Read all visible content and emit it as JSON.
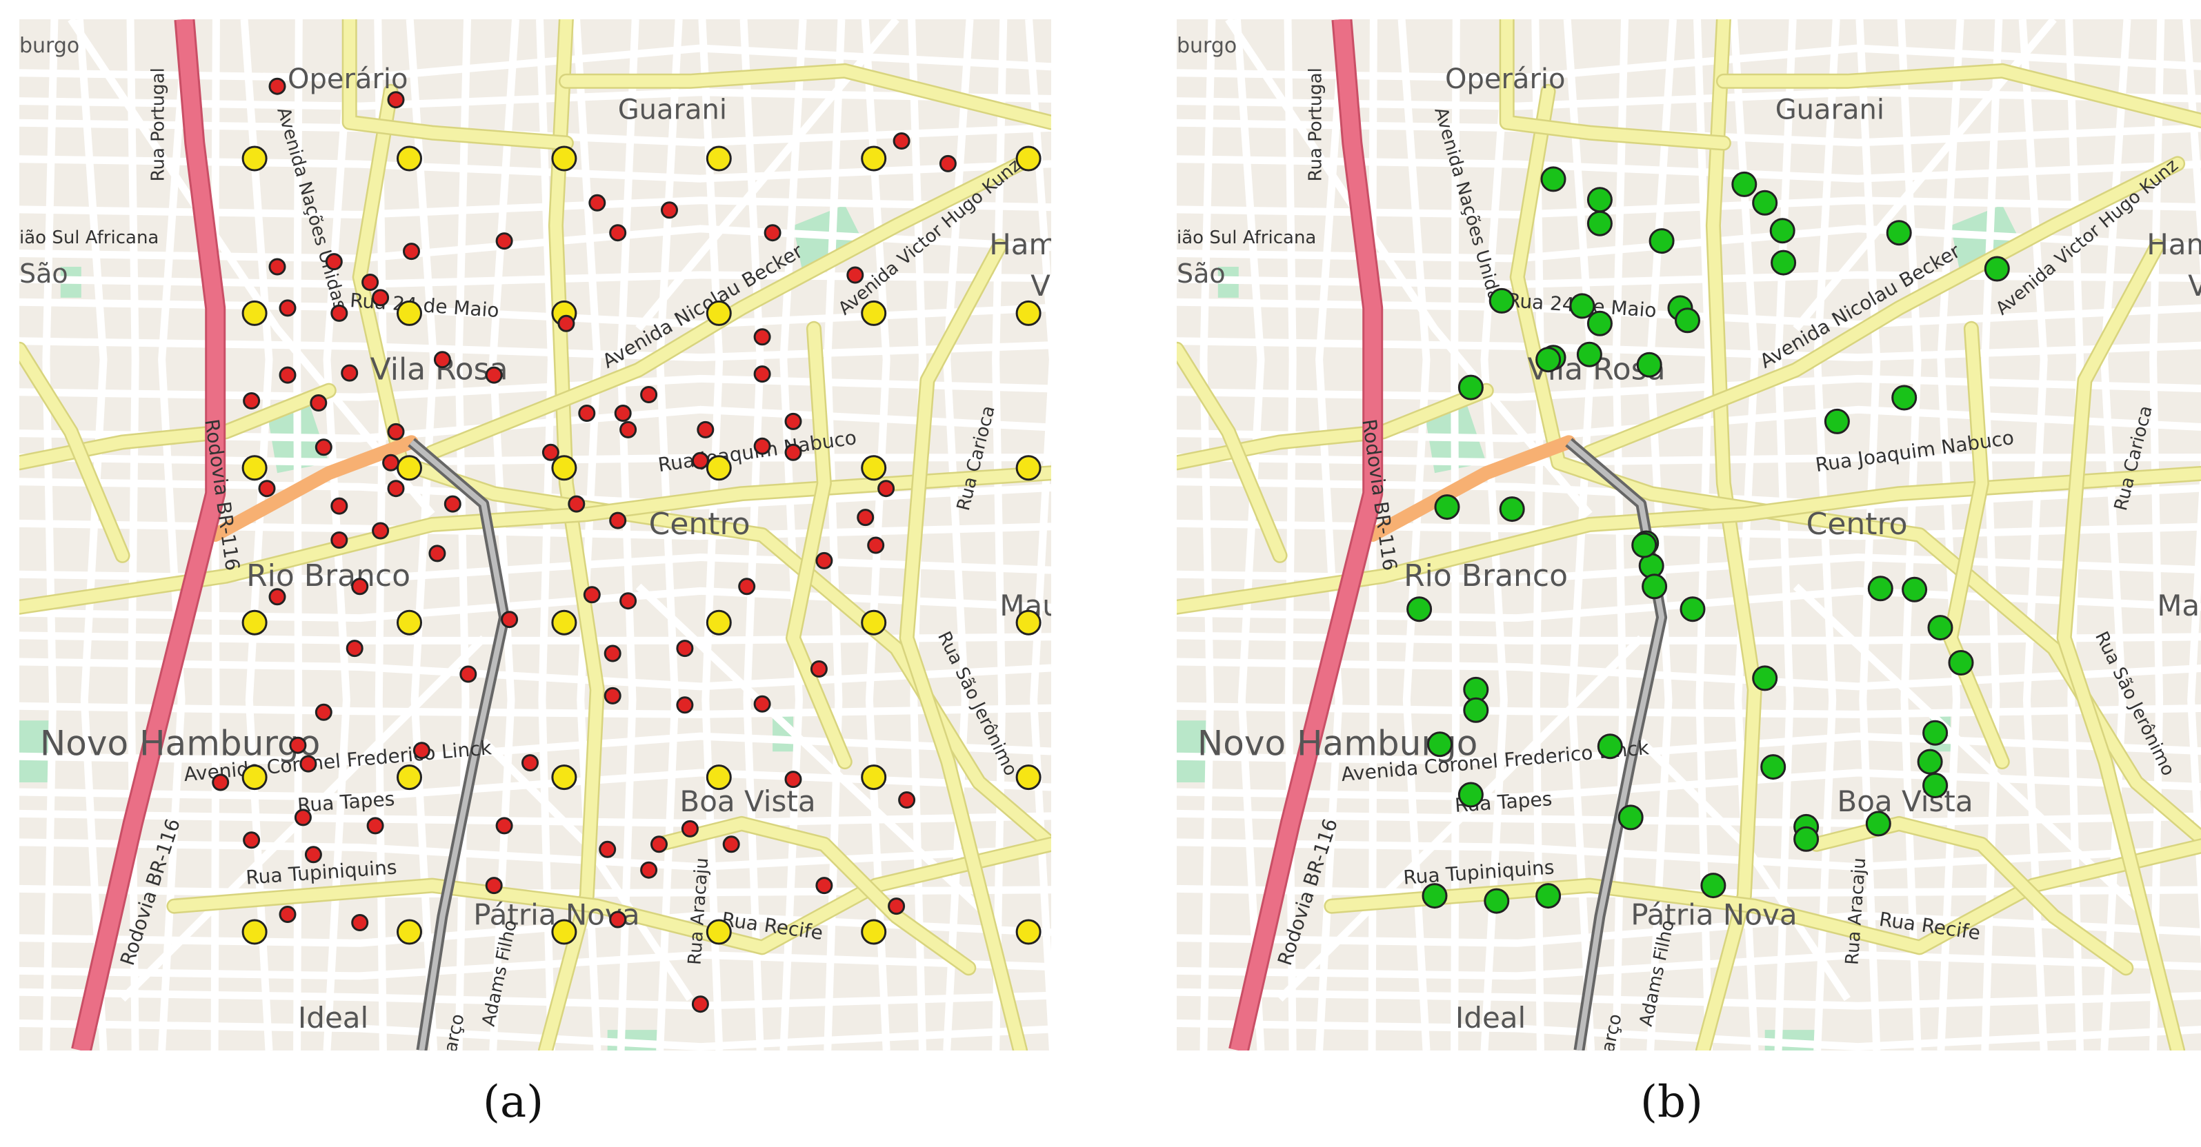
{
  "colors": {
    "land": "#f1ede6",
    "street": "#ffffff",
    "secondary_road": "#f4f2a6",
    "secondary_road_edge": "#d8d47e",
    "motorway": "#ea6f86",
    "trunk": "#f7b072",
    "rail": "#8c8c8c",
    "park": "#b9e7c9",
    "grid_point": "#f6e514",
    "random_point": "#e02424",
    "station_point": "#19c219",
    "outline": "#222222"
  },
  "map_labels": {
    "districts": {
      "operario": "Operário",
      "guarani": "Guarani",
      "vila_rosa": "Vila Rosa",
      "centro": "Centro",
      "rio_branco": "Rio Branco",
      "novo_hamburgo": "Novo Hamburgo",
      "boa_vista": "Boa Vista",
      "patria_nova": "Pátria Nova",
      "ideal": "Ideal",
      "mau": "Mau",
      "ham": "Ham",
      "v": "V",
      "burgo": "burgo",
      "sao": "São"
    },
    "streets": {
      "rua_portugal": "Rua Portugal",
      "uniao_sul_africana": "ião Sul Africana",
      "rodovia_br116": "Rodovia BR-116",
      "av_nacoes_unidas": "Avenida Nações Unidas",
      "rua_24_maio": "Rua 24 de Maio",
      "av_nicolau_becker": "Avenida Nicolau Becker",
      "av_victor_hugo_kunz": "Avenida Victor Hugo Kunz",
      "rua_joaquim_nabuco": "Rua Joaquim Nabuco",
      "rua_carioca": "Rua Carioca",
      "av_coronel_frederico_linck": "Avenida Coronel Frederico Linck",
      "rua_tapes": "Rua Tapes",
      "rua_tupiniquins": "Rua Tupiniquins",
      "rua_aracaju": "Rua Aracaju",
      "rua_recife": "Rua Recife",
      "rua_sao_jeronimo": "Rua São Jerônimo",
      "marco": "Março",
      "adams_filho": "Adams Filho"
    }
  },
  "captions": {
    "a": "(a)",
    "b": "(b)"
  },
  "panel_a": {
    "grid_cols": 6,
    "grid_rows": 6,
    "random_points": [
      [
        0.25,
        0.065
      ],
      [
        0.365,
        0.078
      ],
      [
        0.855,
        0.118
      ],
      [
        0.9,
        0.14
      ],
      [
        0.56,
        0.178
      ],
      [
        0.63,
        0.185
      ],
      [
        0.25,
        0.24
      ],
      [
        0.305,
        0.235
      ],
      [
        0.34,
        0.255
      ],
      [
        0.38,
        0.225
      ],
      [
        0.47,
        0.215
      ],
      [
        0.58,
        0.207
      ],
      [
        0.73,
        0.207
      ],
      [
        0.81,
        0.248
      ],
      [
        0.26,
        0.28
      ],
      [
        0.31,
        0.285
      ],
      [
        0.35,
        0.27
      ],
      [
        0.53,
        0.295
      ],
      [
        0.72,
        0.308
      ],
      [
        0.26,
        0.345
      ],
      [
        0.32,
        0.343
      ],
      [
        0.41,
        0.33
      ],
      [
        0.46,
        0.345
      ],
      [
        0.61,
        0.364
      ],
      [
        0.72,
        0.344
      ],
      [
        0.225,
        0.37
      ],
      [
        0.29,
        0.372
      ],
      [
        0.55,
        0.382
      ],
      [
        0.59,
        0.398
      ],
      [
        0.75,
        0.39
      ],
      [
        0.365,
        0.4
      ],
      [
        0.515,
        0.42
      ],
      [
        0.585,
        0.382
      ],
      [
        0.665,
        0.398
      ],
      [
        0.72,
        0.414
      ],
      [
        0.295,
        0.415
      ],
      [
        0.36,
        0.43
      ],
      [
        0.66,
        0.428
      ],
      [
        0.75,
        0.42
      ],
      [
        0.24,
        0.455
      ],
      [
        0.31,
        0.472
      ],
      [
        0.365,
        0.455
      ],
      [
        0.54,
        0.47
      ],
      [
        0.58,
        0.486
      ],
      [
        0.84,
        0.455
      ],
      [
        0.31,
        0.505
      ],
      [
        0.35,
        0.496
      ],
      [
        0.42,
        0.47
      ],
      [
        0.82,
        0.483
      ],
      [
        0.83,
        0.51
      ],
      [
        0.33,
        0.55
      ],
      [
        0.405,
        0.518
      ],
      [
        0.25,
        0.56
      ],
      [
        0.555,
        0.558
      ],
      [
        0.59,
        0.564
      ],
      [
        0.705,
        0.55
      ],
      [
        0.78,
        0.525
      ],
      [
        0.325,
        0.61
      ],
      [
        0.435,
        0.635
      ],
      [
        0.475,
        0.582
      ],
      [
        0.575,
        0.615
      ],
      [
        0.645,
        0.61
      ],
      [
        0.295,
        0.672
      ],
      [
        0.27,
        0.704
      ],
      [
        0.39,
        0.709
      ],
      [
        0.575,
        0.656
      ],
      [
        0.645,
        0.665
      ],
      [
        0.72,
        0.664
      ],
      [
        0.775,
        0.63
      ],
      [
        0.195,
        0.74
      ],
      [
        0.28,
        0.722
      ],
      [
        0.495,
        0.721
      ],
      [
        0.75,
        0.737
      ],
      [
        0.86,
        0.757
      ],
      [
        0.275,
        0.774
      ],
      [
        0.345,
        0.782
      ],
      [
        0.47,
        0.782
      ],
      [
        0.65,
        0.785
      ],
      [
        0.225,
        0.796
      ],
      [
        0.285,
        0.81
      ],
      [
        0.57,
        0.805
      ],
      [
        0.62,
        0.8
      ],
      [
        0.69,
        0.8
      ],
      [
        0.46,
        0.84
      ],
      [
        0.61,
        0.825
      ],
      [
        0.78,
        0.84
      ],
      [
        0.26,
        0.868
      ],
      [
        0.33,
        0.876
      ],
      [
        0.58,
        0.873
      ],
      [
        0.85,
        0.86
      ],
      [
        0.66,
        0.955
      ]
    ]
  },
  "panel_b": {
    "stations": [
      [
        0.365,
        0.155
      ],
      [
        0.41,
        0.175
      ],
      [
        0.41,
        0.198
      ],
      [
        0.47,
        0.215
      ],
      [
        0.55,
        0.16
      ],
      [
        0.57,
        0.178
      ],
      [
        0.587,
        0.205
      ],
      [
        0.588,
        0.236
      ],
      [
        0.7,
        0.207
      ],
      [
        0.795,
        0.242
      ],
      [
        0.315,
        0.273
      ],
      [
        0.393,
        0.278
      ],
      [
        0.41,
        0.295
      ],
      [
        0.488,
        0.28
      ],
      [
        0.495,
        0.292
      ],
      [
        0.365,
        0.328
      ],
      [
        0.4,
        0.325
      ],
      [
        0.36,
        0.33
      ],
      [
        0.458,
        0.335
      ],
      [
        0.285,
        0.357
      ],
      [
        0.64,
        0.39
      ],
      [
        0.705,
        0.367
      ],
      [
        0.262,
        0.473
      ],
      [
        0.325,
        0.475
      ],
      [
        0.455,
        0.508
      ],
      [
        0.46,
        0.53
      ],
      [
        0.463,
        0.55
      ],
      [
        0.453,
        0.51
      ],
      [
        0.5,
        0.572
      ],
      [
        0.235,
        0.572
      ],
      [
        0.682,
        0.552
      ],
      [
        0.715,
        0.553
      ],
      [
        0.74,
        0.59
      ],
      [
        0.76,
        0.624
      ],
      [
        0.57,
        0.639
      ],
      [
        0.29,
        0.65
      ],
      [
        0.29,
        0.67
      ],
      [
        0.255,
        0.703
      ],
      [
        0.42,
        0.705
      ],
      [
        0.735,
        0.692
      ],
      [
        0.73,
        0.72
      ],
      [
        0.735,
        0.743
      ],
      [
        0.578,
        0.725
      ],
      [
        0.285,
        0.752
      ],
      [
        0.44,
        0.774
      ],
      [
        0.61,
        0.783
      ],
      [
        0.61,
        0.795
      ],
      [
        0.68,
        0.78
      ],
      [
        0.25,
        0.85
      ],
      [
        0.31,
        0.855
      ],
      [
        0.36,
        0.85
      ],
      [
        0.52,
        0.84
      ]
    ]
  }
}
